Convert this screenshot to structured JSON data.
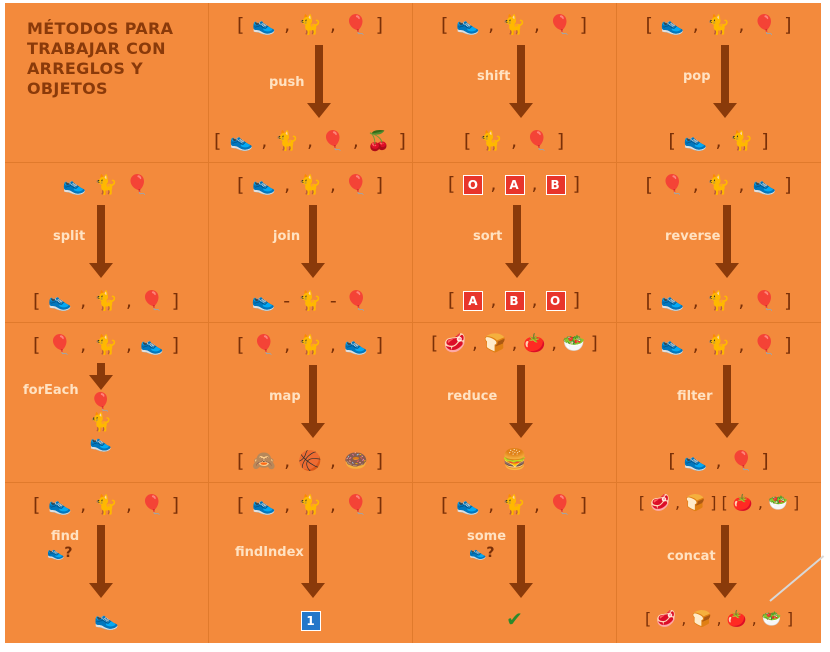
{
  "title_lines": [
    "MÉTODOS PARA",
    "TRABAJAR CON",
    "ARREGLOS Y",
    "OBJETOS"
  ],
  "colors": {
    "background": "#f38a3c",
    "text_dark": "#8a3a0a",
    "label_light": "#ffe2c2",
    "box_red": "#e8352b",
    "box_blue": "#2377c9"
  },
  "icons": {
    "shoe": "👟",
    "cat": "🐈",
    "balloon": "🎈",
    "cherries": "🍒",
    "monkey": "🙈",
    "basketball": "🏀",
    "donut": "🍩",
    "meat": "🥩",
    "bread": "🍞",
    "tomato": "🍅",
    "salad": "🥗",
    "burger": "🍔",
    "check": "✔",
    "question": "?"
  },
  "cells": {
    "push": {
      "top": "[ 👟 , 🐈 , 🎈 ]",
      "label": "push",
      "bottom": "[ 👟 , 🐈 , 🎈 , 🍒 ]"
    },
    "shift": {
      "top": "[ 👟 , 🐈 , 🎈 ]",
      "label": "shift",
      "bottom": "[ 🐈 , 🎈 ]"
    },
    "pop": {
      "top": "[ 👟 , 🐈 , 🎈 ]",
      "label": "pop",
      "bottom": "[ 👟 , 🐈 ]"
    },
    "split": {
      "top": "👟  🐈  🎈",
      "label": "split",
      "bottom": "[ 👟 , 🐈 , 🎈 ]"
    },
    "join": {
      "top": "[ 👟 , 🐈 , 🎈 ]",
      "label": "join",
      "bottom": "👟 - 🐈 - 🎈"
    },
    "sort": {
      "top_boxes": [
        "O",
        "A",
        "B"
      ],
      "label": "sort",
      "bottom_boxes": [
        "A",
        "B",
        "O"
      ]
    },
    "reverse": {
      "top": "[ 🎈 , 🐈 , 👟 ]",
      "label": "reverse",
      "bottom": "[ 👟 , 🐈 , 🎈 ]"
    },
    "forEach": {
      "top": "[ 🎈 , 🐈 , 👟 ]",
      "label": "forEach",
      "stack": [
        "🎈",
        "🐈",
        "👟"
      ]
    },
    "map": {
      "top": "[ 🎈 , 🐈 , 👟 ]",
      "label": "map",
      "bottom": "[ 🙈 , 🏀 , 🍩 ]"
    },
    "reduce": {
      "top": "[ 🥩 , 🍞 , 🍅 , 🥗 ]",
      "label": "reduce",
      "bottom": "🍔"
    },
    "filter": {
      "top": "[ 👟 , 🐈 , 🎈 ]",
      "label": "filter",
      "bottom": "[ 👟 , 🎈 ]"
    },
    "find": {
      "top": "[ 👟 , 🐈 , 🎈 ]",
      "label": "find",
      "query": "👟?",
      "bottom": "👟"
    },
    "findIndex": {
      "top": "[ 👟 , 🐈 , 🎈 ]",
      "label": "findIndex",
      "bottom_box": "1"
    },
    "some": {
      "top": "[ 👟 , 🐈 , 🎈 ]",
      "label": "some",
      "query": "👟?",
      "bottom": "✔"
    },
    "concat": {
      "top": "[ 🥩 , 🍞 ] [ 🍅 , 🥗 ]",
      "label": "concat",
      "bottom": "[ 🥩 , 🍞 , 🍅 , 🥗 ]"
    }
  }
}
